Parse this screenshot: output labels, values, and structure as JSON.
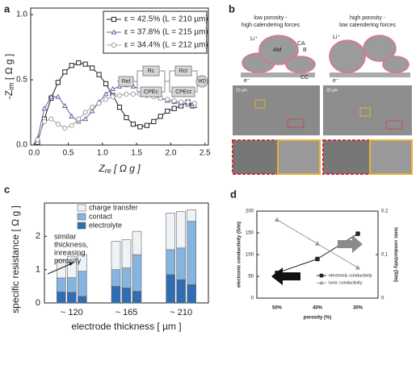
{
  "chart_data": [
    {
      "type": "line",
      "label": "a",
      "xlabel_parts": [
        "Z",
        "re",
        " [ Ω g ]"
      ],
      "ylabel_parts": [
        "-Z",
        "im",
        " [ Ω g ]"
      ],
      "xlim": [
        -0.05,
        2.55
      ],
      "xticks": [
        {
          "value": 0,
          "label": "0.0"
        },
        0.5,
        {
          "value": 1,
          "label": "1.0"
        },
        1.5,
        {
          "value": 2,
          "label": "2.0"
        },
        2.5
      ],
      "ylim": [
        0,
        1.05
      ],
      "yticks": [
        {
          "value": 0,
          "label": "0.0"
        },
        0.5,
        {
          "value": 1,
          "label": "1.0"
        }
      ],
      "legend": "upper right",
      "circuit": [
        "Rel",
        "Rc",
        "CPEc",
        "Rct",
        "CPEct",
        "WD"
      ],
      "series": [
        {
          "name": "ε = 42.5% (L = 210 µm)",
          "color": "#222222",
          "marker": "square",
          "x": [
            0.05,
            0.15,
            0.25,
            0.35,
            0.45,
            0.55,
            0.65,
            0.75,
            0.85,
            0.95,
            1.05,
            1.15,
            1.25,
            1.35,
            1.45,
            1.55,
            1.65,
            1.75,
            1.85,
            1.95,
            2.05,
            2.15,
            2.25,
            2.32
          ],
          "values": [
            0.02,
            0.2,
            0.36,
            0.48,
            0.56,
            0.61,
            0.63,
            0.62,
            0.59,
            0.54,
            0.47,
            0.38,
            0.29,
            0.21,
            0.16,
            0.14,
            0.15,
            0.18,
            0.22,
            0.26,
            0.28,
            0.3,
            0.33,
            0.3
          ]
        },
        {
          "name": "ε = 37.8% (L = 215 µm)",
          "color": "#6a63a6",
          "marker": "triangle",
          "x": [
            0.05,
            0.15,
            0.25,
            0.35,
            0.45,
            0.55,
            0.65,
            0.75,
            0.85,
            0.95,
            1.05,
            1.15,
            1.25,
            1.35,
            1.45,
            1.55,
            1.65,
            1.75,
            1.85,
            1.95,
            2.05,
            2.15,
            2.25,
            2.35
          ],
          "values": [
            0.05,
            0.28,
            0.37,
            0.37,
            0.3,
            0.22,
            0.18,
            0.2,
            0.26,
            0.33,
            0.39,
            0.43,
            0.45,
            0.46,
            0.45,
            0.43,
            0.41,
            0.38,
            0.36,
            0.34,
            0.33,
            0.32,
            0.31,
            0.3
          ]
        },
        {
          "name": "ε = 34.4% (L = 212 µm)",
          "color": "#a0a0a0",
          "marker": "circle",
          "x": [
            0.05,
            0.15,
            0.25,
            0.35,
            0.45,
            0.55,
            0.65,
            0.75,
            0.85,
            0.95,
            1.05,
            1.15,
            1.25,
            1.35,
            1.45,
            1.55,
            1.65,
            1.75,
            1.85,
            1.95,
            2.05,
            2.15,
            2.25,
            2.35
          ],
          "values": [
            0.04,
            0.18,
            0.2,
            0.16,
            0.13,
            0.15,
            0.2,
            0.25,
            0.29,
            0.32,
            0.35,
            0.37,
            0.38,
            0.39,
            0.39,
            0.39,
            0.38,
            0.37,
            0.36,
            0.35,
            0.34,
            0.33,
            0.33,
            0.32
          ]
        }
      ]
    },
    {
      "type": "bar",
      "label": "c",
      "ylabel": "specific resistance [ Ω g ]",
      "xlabel": "electrode thickness [ µm ]",
      "categories": [
        null,
        "~ 120",
        null,
        null,
        "~ 165",
        null,
        null,
        "~ 210",
        null
      ],
      "ylim": [
        0,
        3
      ],
      "yticks": [
        0,
        1,
        2
      ],
      "legend": "upper left",
      "annotation": [
        "similar",
        "thickness,",
        "inreasing",
        "porosity"
      ],
      "series": [
        {
          "name": "charge transfer",
          "color": "#eef3f8",
          "values": [
            0.55,
            0.64,
            0.5,
            0.85,
            0.85,
            0.7,
            1.1,
            1.1,
            0.35
          ]
        },
        {
          "name": "contact",
          "color": "#86b4e0",
          "values": [
            0.42,
            0.44,
            0.75,
            0.5,
            0.6,
            1.1,
            0.75,
            0.95,
            1.9
          ]
        },
        {
          "name": "electrolyte",
          "color": "#2f6db5",
          "values": [
            0.33,
            0.32,
            0.2,
            0.5,
            0.45,
            0.35,
            0.85,
            0.7,
            0.55
          ]
        }
      ]
    },
    {
      "type": "line",
      "label": "d",
      "xlabel": "porosity (%)",
      "ylabel": "electronic conductivity (S/m)",
      "y2label": "ionic conductivity (S/m)",
      "categories": [
        "50%",
        "40%",
        "30%"
      ],
      "ylim": [
        0,
        200
      ],
      "yticks": [
        0,
        50,
        100,
        150,
        200
      ],
      "y2lim": [
        0,
        0.2
      ],
      "y2ticks": [
        0,
        0.1,
        0.2
      ],
      "legend": "lower right",
      "series": [
        {
          "name": "electronic conductivity",
          "color": "#222222",
          "marker": "square",
          "values": [
            58,
            90,
            148
          ]
        },
        {
          "name": "ionic conductivity",
          "color": "#999999",
          "marker": "triangle",
          "axis": "y2",
          "values": [
            0.18,
            0.125,
            0.07
          ]
        }
      ]
    }
  ],
  "schematic": {
    "label": "b",
    "left": {
      "title": [
        "low porosity -",
        "high calendering forces"
      ],
      "li": "Li⁺",
      "am": "AM",
      "ca": "CA",
      "b": "B",
      "cc": "CC",
      "e": "e⁻",
      "scale": "20 µm"
    },
    "right": {
      "title": [
        "high porosity -",
        "low calendering forces"
      ],
      "li": "Li⁺",
      "e": "e⁻",
      "scale": "20 µm"
    }
  }
}
